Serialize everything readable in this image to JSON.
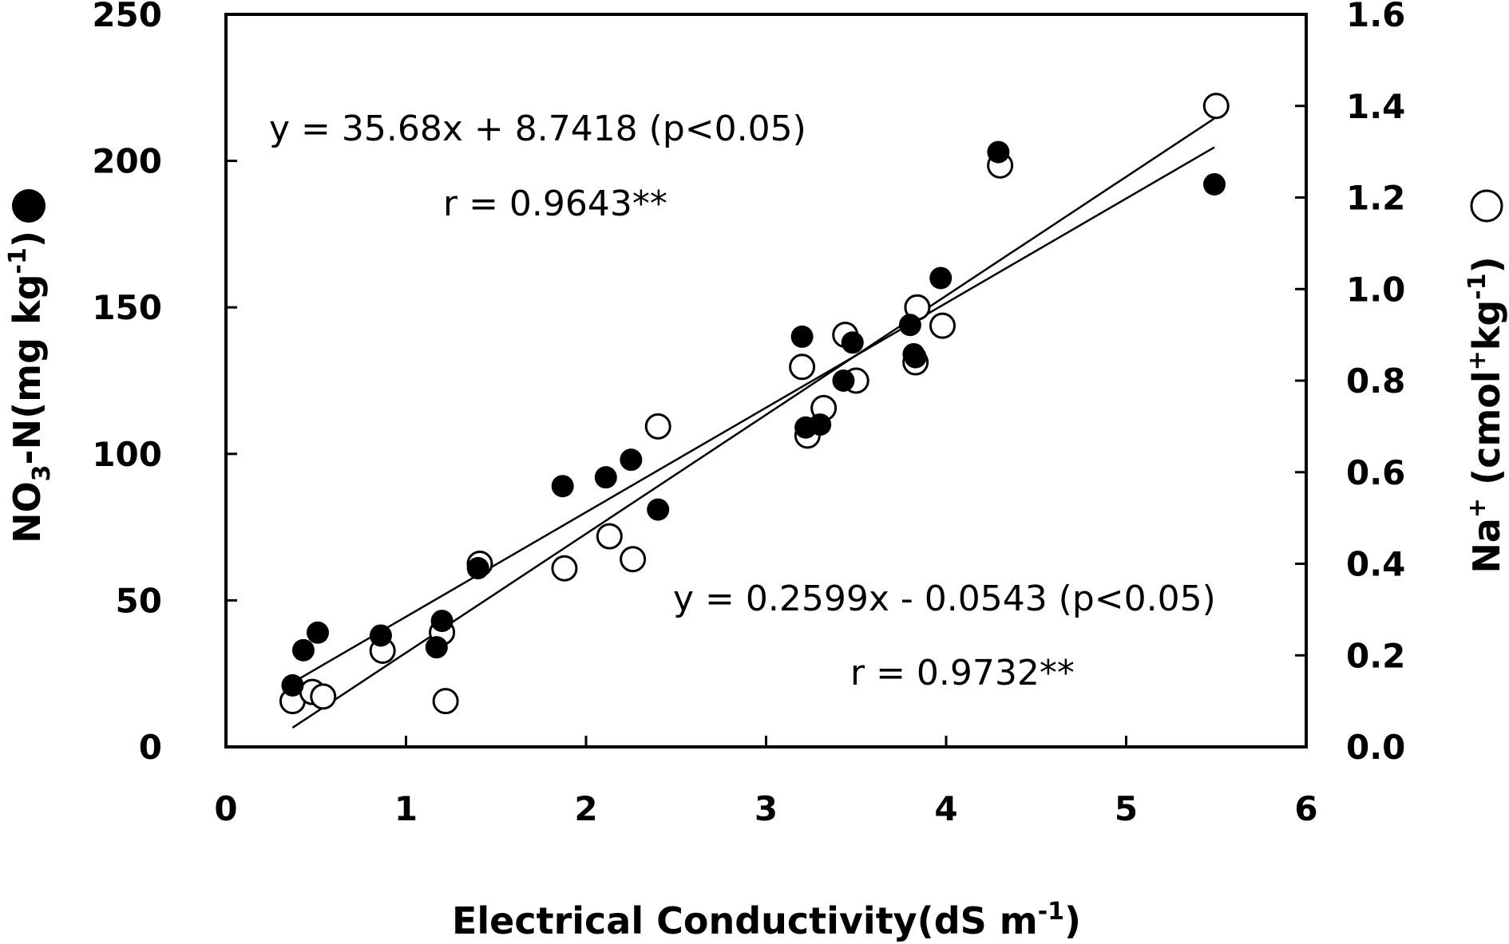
{
  "chart_data": {
    "type": "scatter",
    "xlabel_main": "Electrical Conductivity(dS m",
    "xlabel_sup": "-1",
    "xlabel_end": ")",
    "ylabel_left_main": "NO",
    "ylabel_left_sub": "3",
    "ylabel_left_mid": "-N(mg kg",
    "ylabel_left_sup": "-1",
    "ylabel_left_end": ")",
    "ylabel_right_main": "Na",
    "ylabel_right_sup1": "+",
    "ylabel_right_mid": " (cmol",
    "ylabel_right_sup2": "+",
    "ylabel_right_mid2": "kg",
    "ylabel_right_sup3": "-1",
    "ylabel_right_end": ")",
    "xlim": [
      0,
      6
    ],
    "ylim_left": [
      0,
      250
    ],
    "ylim_right": [
      0,
      1.6
    ],
    "x_ticks": [
      "0",
      "1",
      "2",
      "3",
      "4",
      "5",
      "6"
    ],
    "y_left_ticks": [
      "0",
      "50",
      "100",
      "150",
      "200",
      "250"
    ],
    "y_right_ticks": [
      "0.0",
      "0.2",
      "0.4",
      "0.6",
      "0.8",
      "1.0",
      "1.2",
      "1.4",
      "1.6"
    ],
    "grid": false,
    "series": [
      {
        "marker": "filled-circle",
        "axis": "left",
        "points": [
          [
            0.37,
            21
          ],
          [
            0.43,
            33
          ],
          [
            0.51,
            39
          ],
          [
            0.86,
            38
          ],
          [
            1.17,
            34
          ],
          [
            1.2,
            43
          ],
          [
            1.4,
            61
          ],
          [
            1.87,
            89
          ],
          [
            2.11,
            92
          ],
          [
            2.25,
            98
          ],
          [
            2.4,
            81
          ],
          [
            3.2,
            140
          ],
          [
            3.22,
            109
          ],
          [
            3.3,
            110
          ],
          [
            3.43,
            125
          ],
          [
            3.48,
            138
          ],
          [
            3.8,
            144
          ],
          [
            3.83,
            133
          ],
          [
            3.82,
            134
          ],
          [
            3.97,
            160
          ],
          [
            4.29,
            203
          ],
          [
            5.49,
            192
          ]
        ]
      },
      {
        "marker": "open-circle",
        "axis": "right",
        "points": [
          [
            0.37,
            0.1
          ],
          [
            0.48,
            0.12
          ],
          [
            0.54,
            0.11
          ],
          [
            0.87,
            0.21
          ],
          [
            1.2,
            0.25
          ],
          [
            1.22,
            0.1
          ],
          [
            1.41,
            0.4
          ],
          [
            1.88,
            0.39
          ],
          [
            2.13,
            0.46
          ],
          [
            2.26,
            0.41
          ],
          [
            2.4,
            0.7
          ],
          [
            3.2,
            0.83
          ],
          [
            3.23,
            0.68
          ],
          [
            3.32,
            0.74
          ],
          [
            3.44,
            0.9
          ],
          [
            3.5,
            0.8
          ],
          [
            3.83,
            0.84
          ],
          [
            3.84,
            0.96
          ],
          [
            3.98,
            0.92
          ],
          [
            4.3,
            1.27
          ],
          [
            5.5,
            1.4
          ]
        ]
      }
    ],
    "regression_lines": [
      {
        "axis": "left",
        "x": [
          0.37,
          5.49
        ],
        "y": [
          21.94,
          204.63
        ]
      },
      {
        "axis": "right",
        "x": [
          0.37,
          5.49
        ],
        "y": [
          0.0419,
          1.3726
        ]
      }
    ],
    "annotations": [
      {
        "text": "y = 35.68x + 8.7418 (p<0.05)"
      },
      {
        "text": "r = 0.9643**"
      },
      {
        "text": "y = 0.2599x - 0.0543 (p<0.05)"
      },
      {
        "text": "r = 0.9732**"
      }
    ]
  }
}
